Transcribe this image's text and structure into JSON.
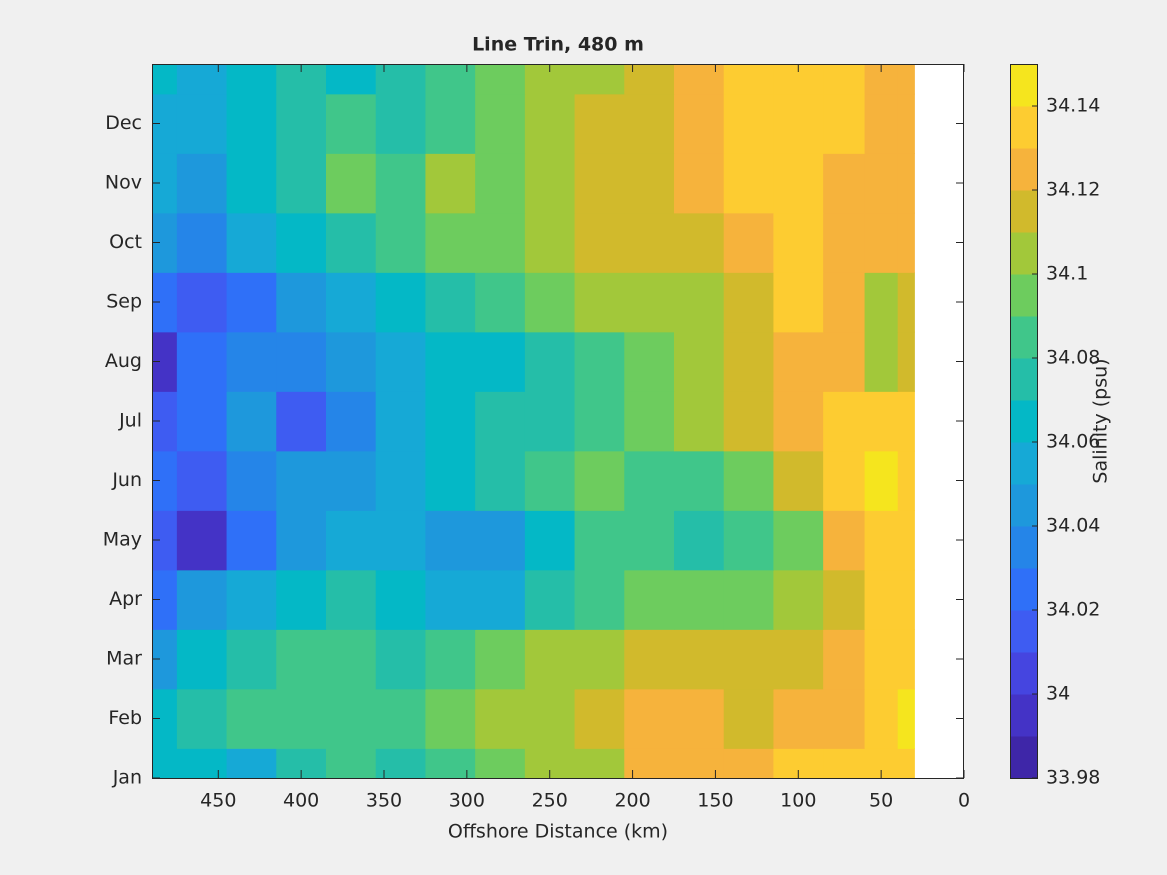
{
  "chart_data": {
    "type": "contour",
    "title": "Line Trin, 480 m",
    "x_label": "Offshore Distance (km)",
    "colorbar_label": "Salinity (psu)",
    "xlim": [
      490,
      0
    ],
    "xticks": [
      450,
      400,
      350,
      300,
      250,
      200,
      150,
      100,
      50,
      0
    ],
    "ylim": [
      1,
      13
    ],
    "yticks": [
      {
        "value": 1,
        "label": "Jan"
      },
      {
        "value": 2,
        "label": "Feb"
      },
      {
        "value": 3,
        "label": "Mar"
      },
      {
        "value": 4,
        "label": "Apr"
      },
      {
        "value": 5,
        "label": "May"
      },
      {
        "value": 6,
        "label": "Jun"
      },
      {
        "value": 7,
        "label": "Jul"
      },
      {
        "value": 8,
        "label": "Aug"
      },
      {
        "value": 9,
        "label": "Sep"
      },
      {
        "value": 10,
        "label": "Oct"
      },
      {
        "value": 11,
        "label": "Nov"
      },
      {
        "value": 12,
        "label": "Dec"
      }
    ],
    "clim": [
      33.98,
      34.15
    ],
    "cticks": [
      33.98,
      34,
      34.02,
      34.04,
      34.06,
      34.08,
      34.1,
      34.12,
      34.14
    ],
    "colormap": [
      "#3e26a8",
      "#4433c6",
      "#4545e0",
      "#3e5cf2",
      "#2f70f8",
      "#2585e8",
      "#1e98dc",
      "#16a9d6",
      "#04b8c6",
      "#25bea8",
      "#40c68a",
      "#6dcc5e",
      "#a2c83a",
      "#d1ba2c",
      "#f6b33c",
      "#fdcc31",
      "#f5e51e"
    ],
    "x": [
      490,
      460,
      430,
      400,
      370,
      340,
      310,
      280,
      250,
      220,
      190,
      160,
      130,
      100,
      70,
      50,
      30
    ],
    "y": [
      1,
      2,
      3,
      4,
      5,
      6,
      7,
      8,
      9,
      10,
      11,
      12,
      13
    ],
    "z": [
      [
        34.065,
        34.065,
        34.055,
        34.075,
        34.085,
        34.075,
        34.085,
        34.095,
        34.105,
        34.105,
        34.125,
        34.125,
        34.125,
        34.135,
        34.135,
        34.135,
        34.135
      ],
      [
        34.065,
        34.075,
        34.085,
        34.085,
        34.085,
        34.085,
        34.095,
        34.105,
        34.105,
        34.115,
        34.125,
        34.125,
        34.115,
        34.125,
        34.125,
        34.135,
        34.145
      ],
      [
        34.045,
        34.065,
        34.075,
        34.085,
        34.085,
        34.075,
        34.085,
        34.095,
        34.105,
        34.105,
        34.115,
        34.115,
        34.115,
        34.115,
        34.125,
        34.135,
        34.135
      ],
      [
        34.025,
        34.045,
        34.055,
        34.065,
        34.075,
        34.065,
        34.055,
        34.055,
        34.075,
        34.085,
        34.095,
        34.095,
        34.095,
        34.105,
        34.115,
        34.135,
        34.135
      ],
      [
        34.015,
        33.995,
        34.025,
        34.045,
        34.055,
        34.055,
        34.045,
        34.045,
        34.065,
        34.085,
        34.085,
        34.075,
        34.085,
        34.095,
        34.125,
        34.135,
        34.135
      ],
      [
        34.025,
        34.015,
        34.035,
        34.045,
        34.045,
        34.055,
        34.065,
        34.075,
        34.085,
        34.095,
        34.085,
        34.085,
        34.095,
        34.115,
        34.135,
        34.145,
        34.135
      ],
      [
        34.015,
        34.025,
        34.045,
        34.015,
        34.035,
        34.055,
        34.065,
        34.075,
        34.075,
        34.085,
        34.095,
        34.105,
        34.115,
        34.125,
        34.135,
        34.135,
        34.135
      ],
      [
        33.995,
        34.025,
        34.035,
        34.035,
        34.045,
        34.055,
        34.065,
        34.065,
        34.075,
        34.085,
        34.095,
        34.105,
        34.115,
        34.125,
        34.125,
        34.105,
        34.115
      ],
      [
        34.025,
        34.015,
        34.025,
        34.045,
        34.055,
        34.065,
        34.075,
        34.085,
        34.095,
        34.105,
        34.105,
        34.105,
        34.115,
        34.135,
        34.125,
        34.105,
        34.115
      ],
      [
        34.045,
        34.035,
        34.055,
        34.065,
        34.075,
        34.085,
        34.095,
        34.095,
        34.105,
        34.115,
        34.115,
        34.115,
        34.125,
        34.135,
        34.125,
        34.125,
        34.125
      ],
      [
        34.055,
        34.045,
        34.065,
        34.075,
        34.095,
        34.085,
        34.105,
        34.095,
        34.105,
        34.115,
        34.115,
        34.125,
        34.135,
        34.135,
        34.125,
        34.125,
        34.125
      ],
      [
        34.055,
        34.055,
        34.065,
        34.075,
        34.085,
        34.075,
        34.085,
        34.095,
        34.105,
        34.115,
        34.115,
        34.125,
        34.135,
        34.135,
        34.135,
        34.125,
        34.125
      ],
      [
        34.065,
        34.055,
        34.065,
        34.075,
        34.065,
        34.075,
        34.085,
        34.095,
        34.105,
        34.105,
        34.115,
        34.125,
        34.135,
        34.135,
        34.135,
        34.125,
        34.125
      ]
    ]
  }
}
